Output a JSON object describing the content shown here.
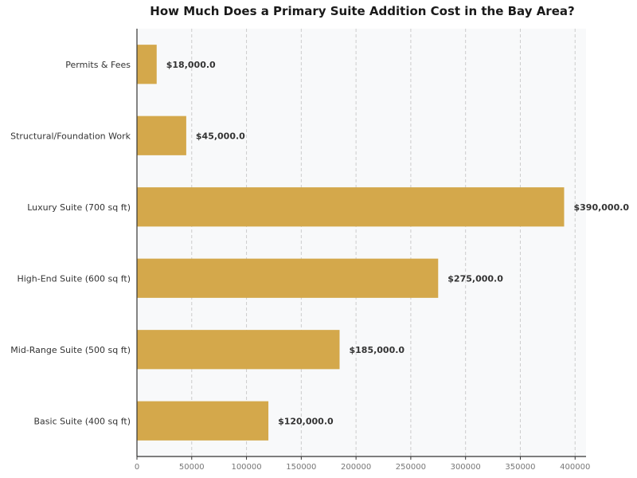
{
  "chart_data": {
    "type": "bar",
    "orientation": "horizontal",
    "title": "How Much Does a Primary Suite Addition Cost in the Bay Area?",
    "xlabel": "",
    "ylabel": "",
    "categories": [
      "Basic Suite (400 sq ft)",
      "Mid-Range Suite (500 sq ft)",
      "High-End Suite (600 sq ft)",
      "Luxury Suite (700 sq ft)",
      "Structural/Foundation Work",
      "Permits & Fees"
    ],
    "values": [
      120000,
      185000,
      275000,
      390000,
      45000,
      18000
    ],
    "value_labels": [
      "$120,000.0",
      "$185,000.0",
      "$275,000.0",
      "$390,000.0",
      "$45,000.0",
      "$18,000.0"
    ],
    "xlim": [
      0,
      410000
    ],
    "xticks": [
      0,
      50000,
      100000,
      150000,
      200000,
      250000,
      300000,
      350000,
      400000
    ],
    "xtick_labels": [
      "0",
      "50000",
      "100000",
      "150000",
      "200000",
      "250000",
      "300000",
      "350000",
      "400000"
    ],
    "grid": "vertical dashed",
    "colors": {
      "bar": "#D4A84B",
      "plot_background": "#F8F9FA",
      "grid": "#CCCCCC",
      "axis": "#333333"
    }
  }
}
